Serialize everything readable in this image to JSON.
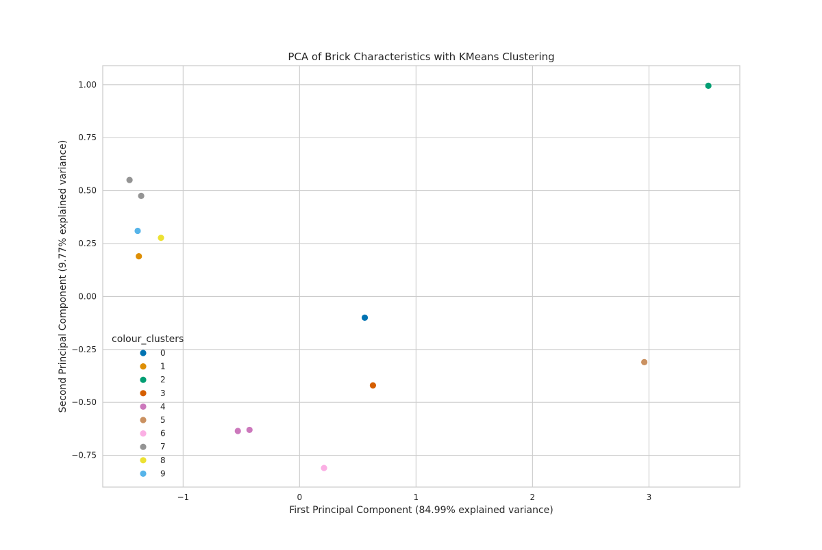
{
  "chart_data": {
    "type": "scatter",
    "title": "PCA of Brick Characteristics with KMeans Clustering",
    "xlabel": "First Principal Component (84.99% explained variance)",
    "ylabel": "Second Principal Component (9.77% explained variance)",
    "xlim": [
      -1.69,
      3.78
    ],
    "ylim": [
      -0.9,
      1.09
    ],
    "xticks": [
      {
        "value": -1,
        "label": "−1"
      },
      {
        "value": 0,
        "label": "0"
      },
      {
        "value": 1,
        "label": "1"
      },
      {
        "value": 2,
        "label": "2"
      },
      {
        "value": 3,
        "label": "3"
      }
    ],
    "yticks": [
      {
        "value": -0.75,
        "label": "−0.75"
      },
      {
        "value": -0.5,
        "label": "−0.50"
      },
      {
        "value": -0.25,
        "label": "−0.25"
      },
      {
        "value": 0,
        "label": "0.00"
      },
      {
        "value": 0.25,
        "label": "0.25"
      },
      {
        "value": 0.5,
        "label": "0.50"
      },
      {
        "value": 0.75,
        "label": "0.75"
      },
      {
        "value": 1,
        "label": "1.00"
      }
    ],
    "grid": true,
    "legend_title": "colour_clusters",
    "legend_position": "center-left",
    "series": [
      {
        "name": "0",
        "color": "#0173b2",
        "points": [
          {
            "x": 0.56,
            "y": -0.1
          }
        ]
      },
      {
        "name": "1",
        "color": "#de8f05",
        "points": [
          {
            "x": -1.38,
            "y": 0.19
          }
        ]
      },
      {
        "name": "2",
        "color": "#029e73",
        "points": [
          {
            "x": 3.51,
            "y": 0.995
          }
        ]
      },
      {
        "name": "3",
        "color": "#d55e00",
        "points": [
          {
            "x": 0.63,
            "y": -0.42
          }
        ]
      },
      {
        "name": "4",
        "color": "#cc78bc",
        "points": [
          {
            "x": -0.53,
            "y": -0.635
          },
          {
            "x": -0.43,
            "y": -0.63
          }
        ]
      },
      {
        "name": "5",
        "color": "#ca9161",
        "points": [
          {
            "x": 2.96,
            "y": -0.31
          }
        ]
      },
      {
        "name": "6",
        "color": "#fbafe4",
        "points": [
          {
            "x": 0.21,
            "y": -0.81
          }
        ]
      },
      {
        "name": "7",
        "color": "#949494",
        "points": [
          {
            "x": -1.46,
            "y": 0.55
          },
          {
            "x": -1.36,
            "y": 0.475
          }
        ]
      },
      {
        "name": "8",
        "color": "#ece133",
        "points": [
          {
            "x": -1.19,
            "y": 0.277
          }
        ]
      },
      {
        "name": "9",
        "color": "#56b4e9",
        "points": [
          {
            "x": -1.39,
            "y": 0.31
          }
        ]
      }
    ]
  }
}
